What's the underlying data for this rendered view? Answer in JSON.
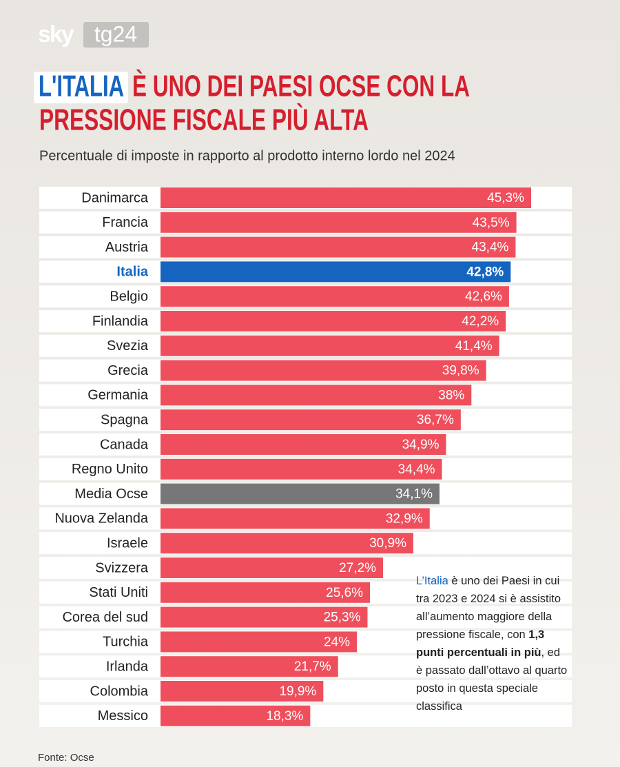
{
  "brand": {
    "sky": "sky",
    "tg": "tg24"
  },
  "chart_data": {
    "type": "bar",
    "orientation": "horizontal",
    "title_highlight": "L'ITALIA",
    "title_lines": [
      "È UNO DEI PAESI OCSE CON LA",
      "PRESSIONE FISCALE PIÙ ALTA"
    ],
    "subtitle": "Percentuale di imposte in rapporto al prodotto interno lordo nel 2024",
    "categories": [
      "Danimarca",
      "Francia",
      "Austria",
      "Italia",
      "Belgio",
      "Finlandia",
      "Svezia",
      "Grecia",
      "Germania",
      "Spagna",
      "Canada",
      "Regno Unito",
      "Media Ocse",
      "Nuova Zelanda",
      "Israele",
      "Svizzera",
      "Stati Uniti",
      "Corea del sud",
      "Turchia",
      "Irlanda",
      "Colombia",
      "Messico"
    ],
    "values": [
      45.3,
      43.5,
      43.4,
      42.8,
      42.6,
      42.2,
      41.4,
      39.8,
      38,
      36.7,
      34.9,
      34.4,
      34.1,
      32.9,
      30.9,
      27.2,
      25.6,
      25.3,
      24,
      21.7,
      19.9,
      18.3
    ],
    "value_labels": [
      "45,3%",
      "43,5%",
      "43,4%",
      "42,8%",
      "42,6%",
      "42,2%",
      "41,4%",
      "39,8%",
      "38%",
      "36,7%",
      "34,9%",
      "34,4%",
      "34,1%",
      "32,9%",
      "30,9%",
      "27,2%",
      "25,6%",
      "25,3%",
      "24%",
      "21,7%",
      "19,9%",
      "18,3%"
    ],
    "highlight_color": "#1565c0",
    "colors": [
      "#ef4f5c",
      "#ef4f5c",
      "#ef4f5c",
      "#1565c0",
      "#ef4f5c",
      "#ef4f5c",
      "#ef4f5c",
      "#ef4f5c",
      "#ef4f5c",
      "#ef4f5c",
      "#ef4f5c",
      "#ef4f5c",
      "#777777",
      "#ef4f5c",
      "#ef4f5c",
      "#ef4f5c",
      "#ef4f5c",
      "#ef4f5c",
      "#ef4f5c",
      "#ef4f5c",
      "#ef4f5c",
      "#ef4f5c"
    ],
    "annotation": [
      "L’Italia",
      " è uno dei Paesi in cui tra 2023 e 2024 si è assistito all’aumento maggiore della pressione fiscale, con ",
      "1,3 punti percentuali in più",
      ", ed è passato dall’ottavo al quarto posto in questa speciale classifica"
    ],
    "source": "Fonte: Ocse"
  }
}
